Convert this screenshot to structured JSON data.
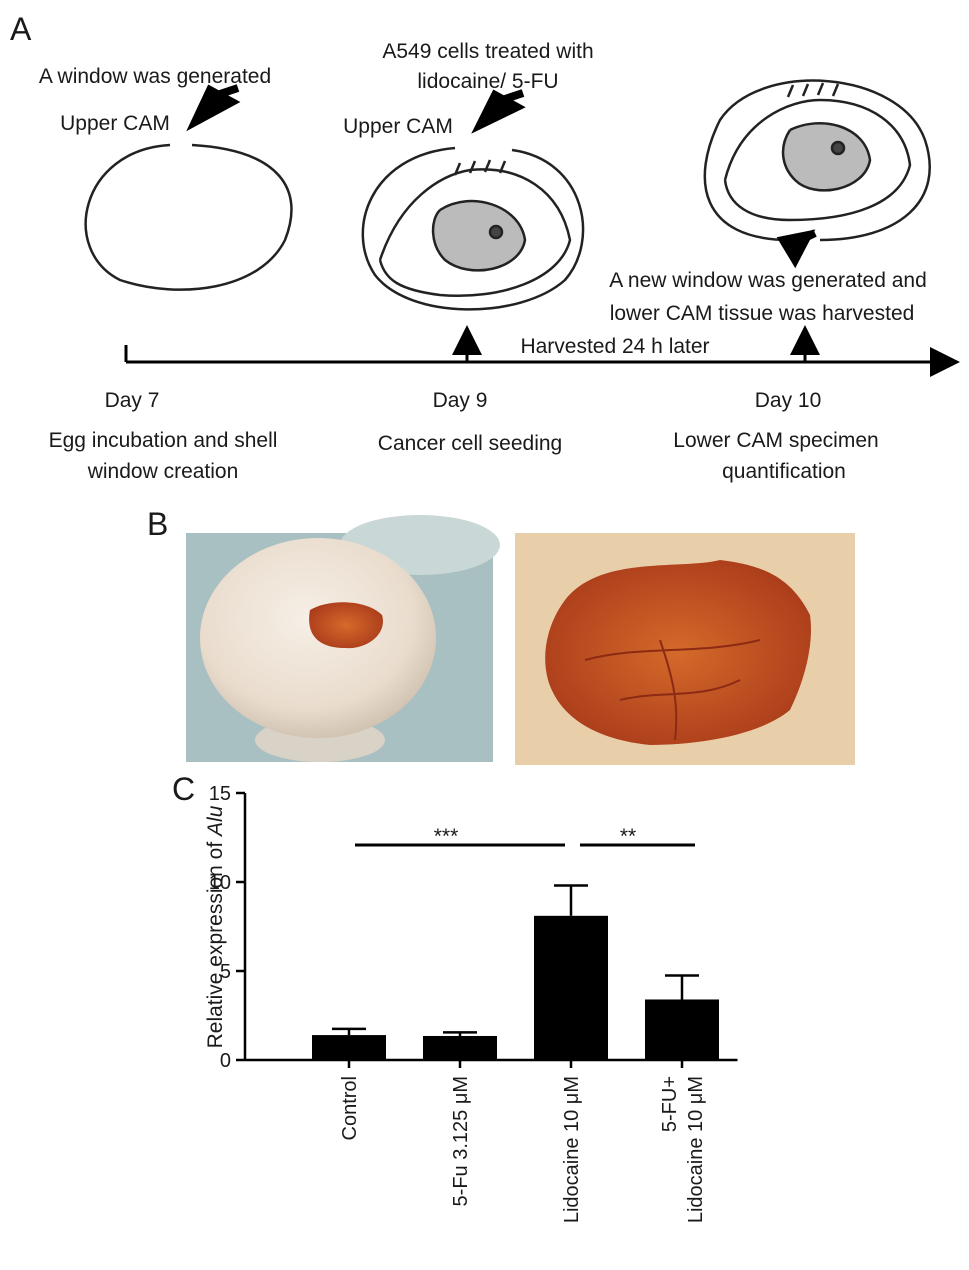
{
  "panel_a": {
    "label": "A",
    "window_note": "A window was generated",
    "upper_cam_1": "Upper CAM",
    "treated_lines": [
      "A549 cells treated with",
      "lidocaine/ 5-FU"
    ],
    "upper_cam_2": "Upper CAM",
    "new_window_lines": [
      "A new window was generated and",
      "lower CAM tissue was harvested"
    ],
    "harvest_note": "Harvested 24 h later",
    "days": [
      "Day 7",
      "Day 9",
      "Day 10"
    ],
    "steps": [
      [
        "Egg incubation and shell",
        "window creation"
      ],
      [
        "Cancer cell seeding"
      ],
      [
        "Lower CAM specimen",
        "quantification"
      ]
    ]
  },
  "panel_b": {
    "label": "B"
  },
  "chart_data": {
    "type": "bar",
    "label": "C",
    "ylabel": "Relative expression of ",
    "ylabel_italic": "Alu",
    "categories": [
      "Control",
      "5-Fu 3.125 μM",
      "Lidocaine 10 μM",
      "5-FU+\nLidocaine 10 μM"
    ],
    "values": [
      1.4,
      1.35,
      8.1,
      3.4
    ],
    "errors": [
      0.35,
      0.2,
      1.7,
      1.35
    ],
    "color": "#000000",
    "ylim": [
      0,
      15
    ],
    "yticks": [
      0,
      5,
      10,
      15
    ],
    "annotations": [
      "***",
      "**"
    ]
  }
}
